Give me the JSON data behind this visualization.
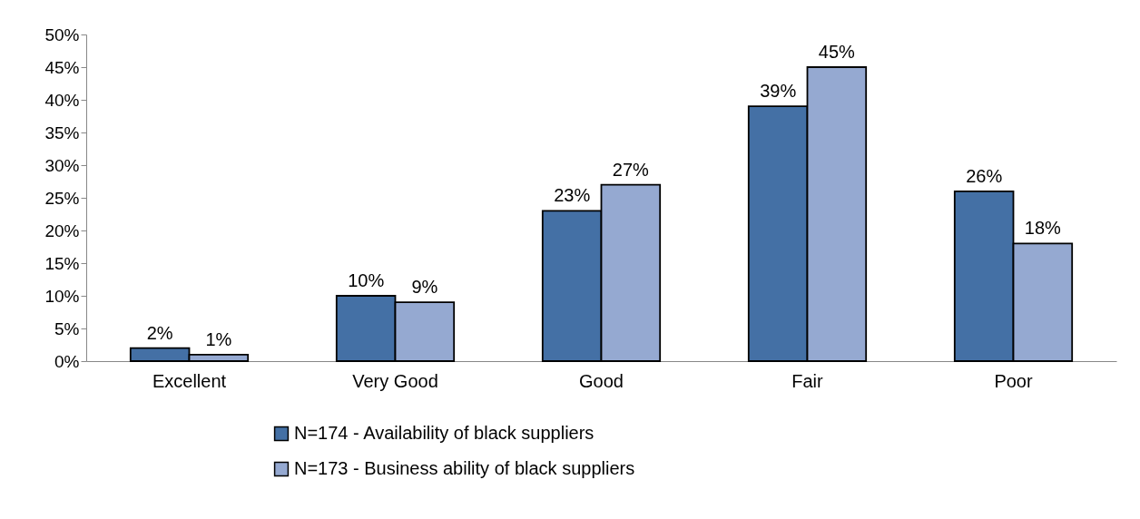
{
  "chart_data": {
    "type": "bar",
    "categories": [
      "Excellent",
      "Very Good",
      "Good",
      "Fair",
      "Poor"
    ],
    "series": [
      {
        "name": "N=174 - Availability of black suppliers",
        "color": "#4470a5",
        "values": [
          2,
          10,
          23,
          39,
          26
        ],
        "value_labels": [
          "2%",
          "10%",
          "23%",
          "39%",
          "26%"
        ]
      },
      {
        "name": "N=173 - Business ability of black suppliers",
        "color": "#95a9d1",
        "values": [
          1,
          9,
          27,
          45,
          18
        ],
        "value_labels": [
          "1%",
          "9%",
          "27%",
          "45%",
          "18%"
        ]
      }
    ],
    "ylim": [
      0,
      50
    ],
    "yticks": [
      {
        "value": 0,
        "label": "0%"
      },
      {
        "value": 5,
        "label": "5%"
      },
      {
        "value": 10,
        "label": "10%"
      },
      {
        "value": 15,
        "label": "15%"
      },
      {
        "value": 20,
        "label": "20%"
      },
      {
        "value": 25,
        "label": "25%"
      },
      {
        "value": 30,
        "label": "30%"
      },
      {
        "value": 35,
        "label": "35%"
      },
      {
        "value": 40,
        "label": "40%"
      },
      {
        "value": 45,
        "label": "45%"
      },
      {
        "value": 50,
        "label": "50%"
      }
    ],
    "legend": "bottom",
    "grid": false
  }
}
